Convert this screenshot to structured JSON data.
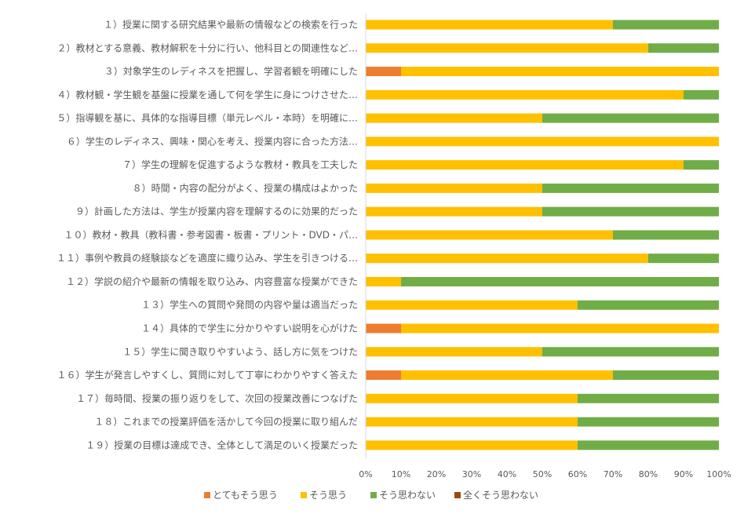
{
  "chart_data": {
    "type": "bar",
    "orientation": "horizontal",
    "stacked": "percent",
    "categories": [
      "１）授業に関する研究結果や最新の情報などの検索を行った",
      "２）教材とする意義、教材解釈を十分に行い、他科目との関連性など…",
      "３）対象学生のレディネスを把握し、学習者観を明確にした",
      "４）教材観・学生観を基盤に授業を通して何を学生に身につけさせた…",
      "５）指導観を基に、具体的な指導目標（単元レベル・本時）を明確に…",
      "６）学生のレディネス、興味・関心を考え、授業内容に合った方法…",
      "７）学生の理解を促進するような教材・教具を工夫した",
      "８）時間・内容の配分がよく、授業の構成はよかった",
      "９）計画した方法は、学生が授業内容を理解するのに効果的だった",
      "１０）教材・教具（教科書・参考図書・板書・プリント・DVD・パ…",
      "１１）事例や教員の経験談などを適度に織り込み、学生を引きつける…",
      "１２）学説の紹介や最新の情報を取り込み、内容豊富な授業ができた",
      "１３）学生への質問や発問の内容や量は適当だった",
      "１４）具体的で学生に分かりやすい説明を心がけた",
      "１５）学生に聞き取りやすいよう、話し方に気をつけた",
      "１６）学生が発言しやすくし、質問に対して丁寧にわかりやすく答えた",
      "１７）毎時間、授業の振り返りをして、次回の授業改善につなげた",
      "１８）これまでの授業評価を活かして今回の授業に取り組んだ",
      "１９）授業の目標は達成でき、全体として満足のいく授業だった"
    ],
    "series": [
      {
        "name": "とてもそう思う",
        "color": "#ED7D31",
        "values": [
          0,
          0,
          10,
          0,
          0,
          0,
          0,
          0,
          0,
          0,
          0,
          0,
          0,
          10,
          0,
          10,
          0,
          0,
          0
        ]
      },
      {
        "name": "そう思う",
        "color": "#FFC000",
        "values": [
          70,
          80,
          90,
          90,
          50,
          100,
          90,
          50,
          50,
          70,
          80,
          10,
          60,
          90,
          50,
          60,
          60,
          60,
          60
        ]
      },
      {
        "name": "そう思わない",
        "color": "#70AD47",
        "values": [
          30,
          20,
          0,
          10,
          50,
          0,
          10,
          50,
          50,
          30,
          20,
          90,
          40,
          0,
          50,
          30,
          40,
          40,
          40
        ]
      },
      {
        "name": "全くそう思わない",
        "color": "#9E480E",
        "values": [
          0,
          0,
          0,
          0,
          0,
          0,
          0,
          0,
          0,
          0,
          0,
          0,
          0,
          0,
          0,
          0,
          0,
          0,
          0
        ]
      }
    ],
    "x_ticks": [
      "0%",
      "10%",
      "20%",
      "30%",
      "40%",
      "50%",
      "60%",
      "70%",
      "80%",
      "90%",
      "100%"
    ],
    "xlim": [
      0,
      100
    ],
    "grid": false,
    "legend_position": "bottom"
  }
}
